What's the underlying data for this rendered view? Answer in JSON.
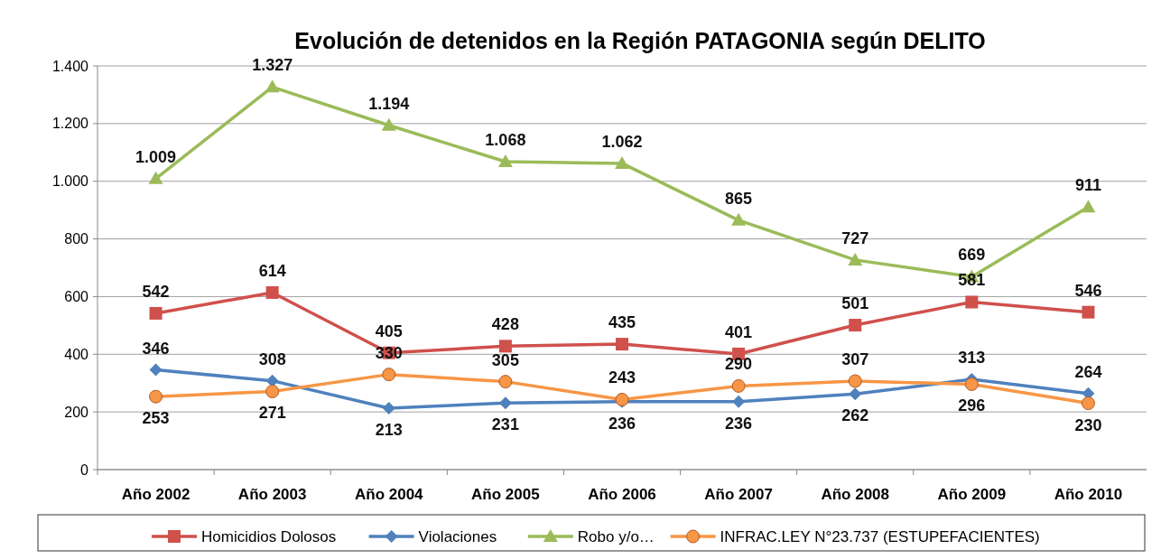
{
  "chart_data": {
    "type": "line",
    "title": "Evolución de detenidos en la Región PATAGONIA según DELITO",
    "categories": [
      "Año 2002",
      "Año 2003",
      "Año 2004",
      "Año 2005",
      "Año 2006",
      "Año 2007",
      "Año 2008",
      "Año 2009",
      "Año 2010"
    ],
    "series": [
      {
        "name": "Homicidios Dolosos",
        "color": "#d0504c",
        "marker": "square",
        "values": [
          542,
          614,
          405,
          428,
          435,
          401,
          501,
          581,
          546
        ]
      },
      {
        "name": "Violaciones",
        "color": "#4f81bd",
        "marker": "diamond",
        "values": [
          346,
          308,
          213,
          231,
          236,
          236,
          262,
          313,
          264
        ]
      },
      {
        "name": "Robo y/o…",
        "color": "#9bbb59",
        "marker": "triangle",
        "values": [
          1009,
          1327,
          1194,
          1068,
          1062,
          865,
          727,
          669,
          911
        ],
        "value_labels": [
          "1.009",
          "1.327",
          "1.194",
          "1.068",
          "1.062",
          "865",
          "727",
          "669",
          "911"
        ]
      },
      {
        "name": "INFRAC.LEY N°23.737 (ESTUPEFACIENTES)",
        "color": "#f79646",
        "marker": "circle",
        "values": [
          253,
          271,
          330,
          305,
          243,
          290,
          307,
          296,
          230
        ]
      }
    ],
    "ylim": [
      0,
      1400
    ],
    "yticks": [
      0,
      200,
      400,
      600,
      800,
      {
        "value": 1000,
        "label": "1.000"
      },
      {
        "value": 1200,
        "label": "1.200"
      },
      {
        "value": 1400,
        "label": "1.400"
      }
    ],
    "grid": "y",
    "legend": "bottom",
    "data_labels": true,
    "line_style": "solid"
  }
}
